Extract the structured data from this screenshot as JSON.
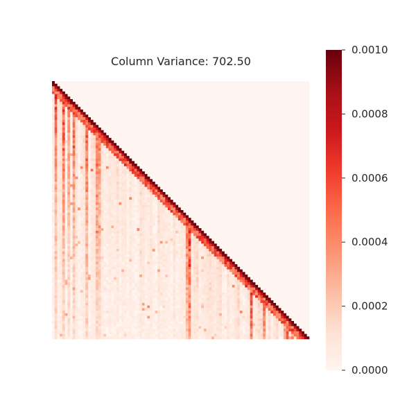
{
  "chart_data": {
    "type": "heatmap",
    "title": "Column Variance: 702.50",
    "xlabel": "",
    "ylabel": "",
    "structure": "lower-triangular matrix (upper triangle empty), strongest values on the diagonal",
    "matrix_rows": 100,
    "matrix_cols": 100,
    "grid": false,
    "colormap": "Reds",
    "colorbar": {
      "location": "right",
      "vmin": 0.0,
      "vmax": 0.001,
      "ticks": [
        0.0,
        0.0002,
        0.0004,
        0.0006,
        0.0008,
        0.001
      ],
      "tick_labels": [
        "0.0000",
        "0.0002",
        "0.0004",
        "0.0006",
        "0.0008",
        "0.0010"
      ]
    },
    "colors": [
      "#fff5f0",
      "#fee0d2",
      "#fcbba1",
      "#fc9272",
      "#fb6a4a",
      "#ef3b2c",
      "#cb181d",
      "#a50f15",
      "#67000d"
    ]
  }
}
